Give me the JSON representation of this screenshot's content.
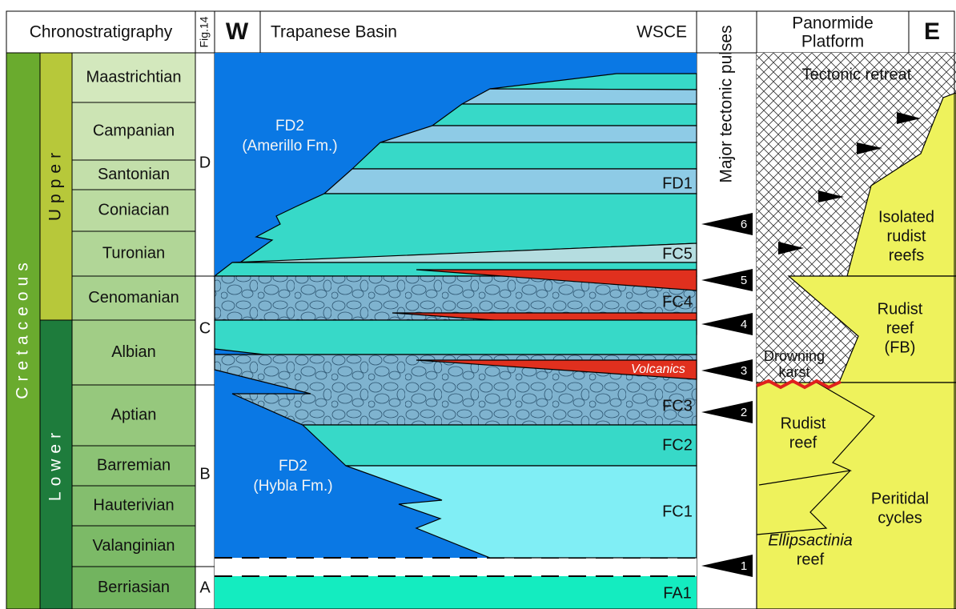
{
  "header": {
    "chronostratigraphy": "Chronostratigraphy",
    "fig": "Fig.14",
    "west": "W",
    "basin": "Trapanese Basin",
    "wsce": "WSCE",
    "pulses": "Major tectonic pulses",
    "platform_line1": "Panormide",
    "platform_line2": "Platform",
    "east": "E"
  },
  "chronostratigraphy": {
    "period": "Cretaceous",
    "epochs": [
      "Upper",
      "Lower"
    ],
    "stages": [
      "Maastrichtian",
      "Campanian",
      "Santonian",
      "Coniacian",
      "Turonian",
      "Cenomanian",
      "Albian",
      "Aptian",
      "Barremian",
      "Hauterivian",
      "Valanginian",
      "Berriasian"
    ]
  },
  "fig14_units": [
    "D",
    "C",
    "B",
    "A"
  ],
  "basin": {
    "fd2_upper": [
      "FD2",
      "(Amerillo Fm.)"
    ],
    "fd2_lower": [
      "FD2",
      "(Hybla Fm.)"
    ],
    "units": [
      "FD1",
      "FC5",
      "FC4",
      "FC3",
      "FC2",
      "FC1",
      "FA1"
    ],
    "volcanics": "Volcanics"
  },
  "pulses": [
    "6",
    "5",
    "4",
    "3",
    "2",
    "1"
  ],
  "platform": {
    "tectonic_retreat": "Tectonic retreat",
    "isolated": [
      "Isolated",
      "rudist",
      "reefs"
    ],
    "rudist_reef_fb": [
      "Rudist",
      "reef",
      "(FB)"
    ],
    "drowning_karst": [
      "Drowning",
      "karst"
    ],
    "rudist_reef": [
      "Rudist",
      "reef"
    ],
    "peritidal": [
      "Peritidal",
      "cycles"
    ],
    "ellipsactinia": [
      "Ellipsactinia",
      "reef"
    ]
  }
}
